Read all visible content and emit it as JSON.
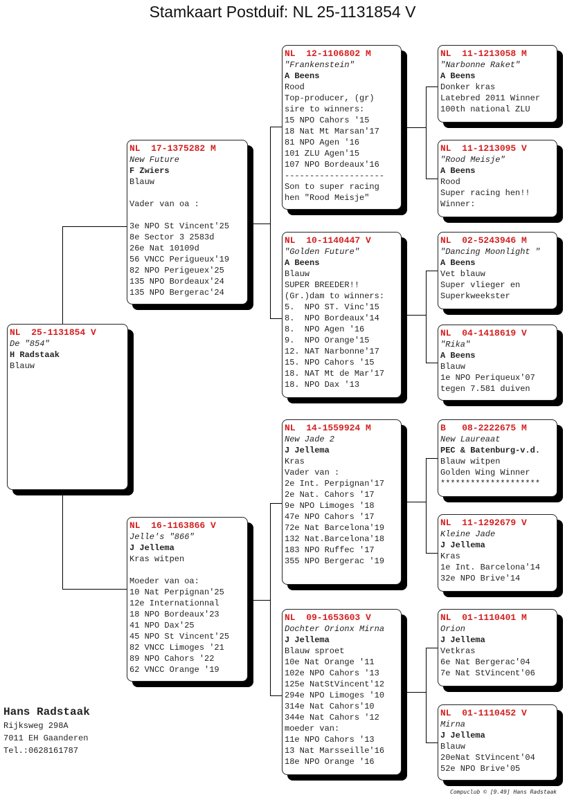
{
  "title": "Stamkaart Postduif: NL  25-1131854 V",
  "pigeons": {
    "subject": {
      "ring": "NL  25-1131854 V",
      "name": "De \"854\"",
      "breeder": "H Radstaak",
      "color": "Blauw",
      "notes": []
    },
    "father": {
      "ring": "NL  17-1375282 M",
      "name": "New Future",
      "breeder": "F Zwiers",
      "color": "Blauw",
      "notes": [
        "",
        "Vader van oa :",
        "",
        "3e NPO St Vincent'25",
        "8e Sector 3 2583d",
        "26e Nat 10109d",
        "56 VNCC Perigueux'19",
        "82 NPO Perigeuex'25",
        "135 NPO Bordeaux'24",
        "135 NPO Bergerac'24"
      ]
    },
    "mother": {
      "ring": "NL  16-1163866 V",
      "name": "Jelle's \"866\"",
      "breeder": "J Jellema",
      "color": "Kras witpen",
      "notes": [
        "",
        "Moeder van oa:",
        "10 Nat Perpignan'25",
        "12e Internationnal",
        "18 NPO Bordeaux'23",
        "41 NPO Dax'25",
        "45 NPO St Vincent'25",
        "82 VNCC Limoges '21",
        "89 NPO Cahors '22",
        "62 VNCC Orange '19"
      ]
    },
    "ff": {
      "ring": "NL  12-1106802 M",
      "name": "\"Frankenstein\"",
      "breeder": "A Beens",
      "color": "Rood",
      "notes": [
        "Top-producer, (gr)",
        "sire to winners:",
        "15 NPO Cahors '15",
        "18 Nat Mt Marsan'17",
        "81 NPO Agen '16",
        "101 ZLU Agen'15",
        "107 NPO Bordeaux'16",
        "--------------------",
        "Son to super racing",
        "hen \"Rood Meisje\""
      ]
    },
    "fm": {
      "ring": "NL  10-1140447 V",
      "name": "\"Golden Future\"",
      "breeder": "A Beens",
      "color": "Blauw",
      "notes": [
        "SUPER BREEDER!!",
        "(Gr.)dam to winners:",
        "5.  NPO ST. Vinc'15",
        "8.  NPO Bordeaux'14",
        "8.  NPO Agen '16",
        "9.  NPO Orange'15",
        "12. NAT Narbonne'17",
        "15. NPO Cahors '15",
        "18. NAT Mt de Mar'17",
        "18. NPO Dax '13"
      ]
    },
    "mf": {
      "ring": "NL  14-1559924 M",
      "name": "New Jade 2",
      "breeder": "J Jellema",
      "color": "Kras",
      "notes": [
        "Vader van :",
        "2e Int. Perpignan'17",
        "2e Nat. Cahors '17",
        "9e NPO Limoges '18",
        "47e NPO Cahors '17",
        "72e Nat Barcelona'19",
        "132 Nat.Barcelona'18",
        "183 NPO Ruffec '17",
        "355 NPO Bergerac '19"
      ]
    },
    "mm": {
      "ring": "NL  09-1653603 V",
      "name": "Dochter Orionx Mirna",
      "breeder": "J Jellema",
      "color": "Blauw sproet",
      "notes": [
        "10e Nat Orange '11",
        "102e NPO Cahors '13",
        "125e NatStVincent'12",
        "294e NPO Limoges '10",
        "314e Nat Cahors'10",
        "344e Nat Cahors '12",
        "moeder van:",
        "11e NPO Cahors '13",
        "13 Nat Marsseille'16",
        "18e NPO Orange '16"
      ]
    },
    "fff": {
      "ring": "NL  11-1213058 M",
      "name": "\"Narbonne Raket\"",
      "breeder": "A Beens",
      "color": "Donker kras",
      "notes": [
        "Latebred 2011 Winner",
        "100th national ZLU"
      ]
    },
    "ffm": {
      "ring": "NL  11-1213095 V",
      "name": "\"Rood Meisje\"",
      "breeder": "A Beens",
      "color": "Rood",
      "notes": [
        "Super racing hen!!",
        "Winner:"
      ]
    },
    "fmf": {
      "ring": "NL  02-5243946 M",
      "name": "\"Dancing Moonlight \"",
      "breeder": "A Beens",
      "color": "Vet blauw",
      "notes": [
        "Super vlieger en",
        "Superkweekster"
      ]
    },
    "fmm": {
      "ring": "NL  04-1418619 V",
      "name": "\"Rika\"",
      "breeder": "A Beens",
      "color": "Blauw",
      "notes": [
        "1e NPO Periqueux'07",
        "tegen 7.581 duiven"
      ]
    },
    "mff": {
      "ring": "B   08-2222675 M",
      "name": "New Laureaat",
      "breeder": "PEC & Batenburg-v.d.",
      "color": "Blauw witpen",
      "notes": [
        "Golden Wing Winner",
        "********************"
      ]
    },
    "mfm": {
      "ring": "NL  11-1292679 V",
      "name": "Kleine Jade",
      "breeder": "J Jellema",
      "color": "Kras",
      "notes": [
        "1e Int. Barcelona'14",
        "32e NPO Brive'14"
      ]
    },
    "mmf": {
      "ring": "NL  01-1110401 M",
      "name": "Orion",
      "breeder": "J Jellema",
      "color": "Vetkras",
      "notes": [
        "6e Nat Bergerac'04",
        "7e Nat StVincent'06"
      ]
    },
    "mmm": {
      "ring": "NL  01-1110452 V",
      "name": "Mirna",
      "breeder": "J Jellema",
      "color": "Blauw",
      "notes": [
        "20eNat StVincent'04",
        "52e NPO Brive'05"
      ]
    }
  },
  "owner": {
    "name": "Hans Radstaak",
    "address": "Rijksweg 298A",
    "city": "7011 EH  Gaanderen",
    "phone": "Tel.:0628161787"
  },
  "footer": "Compuclub © [9.49]  Hans Radstaak",
  "colors": {
    "ring": "#d42020"
  }
}
